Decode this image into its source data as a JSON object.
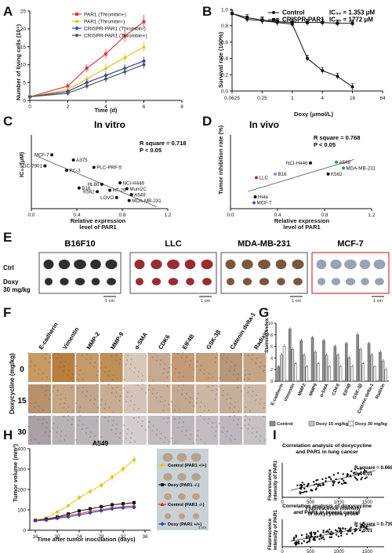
{
  "panels": {
    "A": {
      "label": "A",
      "chart_data": {
        "type": "line",
        "xlabel": "Time (d)",
        "ylabel": "Number of living cells (10⁴)",
        "xlim": [
          0,
          8
        ],
        "ylim": [
          0,
          25
        ],
        "x": [
          0,
          2,
          3,
          4,
          5,
          6
        ],
        "xticks": [
          "0",
          "2",
          "4",
          "6",
          "8"
        ],
        "yticks": [
          "0",
          "5",
          "10",
          "15",
          "20",
          "25"
        ],
        "legend_position": "top-left",
        "series": [
          {
            "name": "PAR1 (Thrombin+)",
            "color": "#e23a3a",
            "values": [
              1,
              4,
              9,
              13,
              18,
              22
            ]
          },
          {
            "name": "PAR1 (Thrombin-)",
            "color": "#e6c21a",
            "values": [
              1,
              3,
              6,
              9,
              12,
              15
            ]
          },
          {
            "name": "CRISPR-PAR1 (Thrombin-)",
            "color": "#2d3fb0",
            "values": [
              1,
              2.5,
              5,
              7,
              9,
              11
            ]
          },
          {
            "name": "CRISPR-PAR1 (Thrombin+)",
            "color": "#555555",
            "values": [
              1,
              2,
              4,
              6,
              8,
              10
            ]
          }
        ]
      }
    },
    "B": {
      "label": "B",
      "chart_data": {
        "type": "line",
        "xlabel": "Doxy  (μmol/L)",
        "ylabel": "Survival rate (100%)",
        "xscale": "log",
        "x": [
          0.0625,
          0.125,
          0.25,
          0.5,
          1,
          2,
          4,
          8,
          16
        ],
        "xticks": [
          "0.0625",
          "0.25",
          "1",
          "4",
          "16",
          "64"
        ],
        "yticks": [
          "0.0",
          "0.2",
          "0.4",
          "0.6",
          "0.8",
          "1.0"
        ],
        "ylim": [
          0,
          1.0
        ],
        "legend_position": "top",
        "series": [
          {
            "name": "Control",
            "ic50": "IC₅₀ = 1.353 μM",
            "color": "#111111",
            "values": [
              0.95,
              0.88,
              0.86,
              0.84,
              0.82,
              0.4,
              0.25,
              0.18,
              0.05
            ]
          },
          {
            "name": "CRISPR-PAR1",
            "ic50": "IC₅₀ = 1772 μM",
            "color": "#111111",
            "values": [
              0.95,
              0.9,
              0.87,
              0.85,
              0.84,
              0.84,
              0.84,
              0.83,
              0.83
            ]
          }
        ]
      }
    },
    "C": {
      "label": "C",
      "title": "In vitro",
      "rsq": "R square = 0.718",
      "pval": "P < 0.05",
      "chart_data": {
        "type": "scatter",
        "xlabel": "Relative expression\nlevel of PAR1",
        "ylabel": "IC₅₀ (μM)",
        "xlim": [
          0,
          1.2
        ],
        "xticks": [
          "0.0",
          "0.4",
          "0.8",
          "1.2"
        ],
        "ylim": [
          0,
          1
        ],
        "points": [
          {
            "name": "MCF-7",
            "x": 0.18,
            "y": 0.73
          },
          {
            "name": "A375",
            "x": 0.37,
            "y": 0.66
          },
          {
            "name": "SGC-7901",
            "x": 0.12,
            "y": 0.58
          },
          {
            "name": "PLC-PRF-5",
            "x": 0.55,
            "y": 0.56
          },
          {
            "name": "PC-3",
            "x": 0.31,
            "y": 0.52
          },
          {
            "name": "HL60",
            "x": 0.62,
            "y": 0.33
          },
          {
            "name": "NCI-H446",
            "x": 0.78,
            "y": 0.35
          },
          {
            "name": "B16",
            "x": 0.42,
            "y": 0.28
          },
          {
            "name": "Mum2C",
            "x": 0.84,
            "y": 0.27
          },
          {
            "name": "HT-29",
            "x": 0.69,
            "y": 0.25
          },
          {
            "name": "K562",
            "x": 0.58,
            "y": 0.23
          },
          {
            "name": "A549",
            "x": 0.88,
            "y": 0.19
          },
          {
            "name": "LOVO",
            "x": 0.75,
            "y": 0.15
          },
          {
            "name": "MDA-MB-231",
            "x": 0.86,
            "y": 0.11
          }
        ]
      }
    },
    "D": {
      "label": "D",
      "title": "In vivo",
      "rsq": "R square = 0.768",
      "pval": "P < 0.05",
      "chart_data": {
        "type": "scatter",
        "xlabel": "Relative expression\nlevel of PAR1",
        "ylabel": "Tumor inhibition rate (%)",
        "xlim": [
          0,
          1.2
        ],
        "xticks": [
          "0.0",
          "0.4",
          "0.8",
          "1.2"
        ],
        "ylim": [
          0,
          1
        ],
        "points": [
          {
            "name": "NCI-H446",
            "x": 0.68,
            "y": 0.62,
            "color": "#111111"
          },
          {
            "name": "A549",
            "x": 0.9,
            "y": 0.63,
            "color": "#2b9a45"
          },
          {
            "name": "MDA-MB-231",
            "x": 0.96,
            "y": 0.55,
            "color": "#2b9a45"
          },
          {
            "name": "K562",
            "x": 0.83,
            "y": 0.47,
            "color": "#111111"
          },
          {
            "name": "B16",
            "x": 0.38,
            "y": 0.47,
            "color": "#8a8adc"
          },
          {
            "name": "LLC",
            "x": 0.22,
            "y": 0.42,
            "color": "#c0282a"
          },
          {
            "name": "Hela",
            "x": 0.21,
            "y": 0.16,
            "color": "#111111"
          },
          {
            "name": "MCF-7",
            "x": 0.2,
            "y": 0.08,
            "color": "#6b3cc8"
          }
        ]
      }
    },
    "E": {
      "label": "E",
      "groups": [
        {
          "name": "B16F10",
          "color": "#1d1d1d",
          "scale": "1 cm"
        },
        {
          "name": "LLC",
          "color": "#8e1b1f",
          "scale": "1 cm"
        },
        {
          "name": "MDA-MB-231",
          "color": "#6e4a2f",
          "scale": "1 cm"
        },
        {
          "name": "MCF-7",
          "color": "#8f9bb0",
          "scale": "1 cm"
        }
      ],
      "row_ctrl": "Ctrl",
      "row_doxy": "Doxy",
      "row_dose": "30 mg/kg"
    },
    "F": {
      "label": "F",
      "markers": [
        "E-cadherin",
        "Vimentin",
        "MMP-2",
        "MMP-9",
        "α-SMA",
        "CDK6",
        "EIF4B",
        "GSK-3β",
        "Catenin delta-1",
        "Radixin"
      ],
      "side_label": "Doxycycline (mg/kg)",
      "doses": [
        "0",
        "15",
        "30"
      ]
    },
    "G": {
      "label": "G",
      "chart_data": {
        "type": "bar",
        "ylabel": "Staining index",
        "yticks": [
          "0",
          "2",
          "4",
          "6",
          "8",
          "10"
        ],
        "ylim": [
          0,
          10
        ],
        "categories": [
          "E-cadherin",
          "Vimentin",
          "MMP2",
          "MMP9",
          "α-SMA",
          "CDK6",
          "EIF4B",
          "GSK-3β",
          "Catenin delta-1",
          "Radixin"
        ],
        "legend_position": "bottom",
        "series": [
          {
            "name": "Control",
            "color": "#8c8c8c",
            "values": [
              2.5,
              9,
              7,
              7.5,
              7,
              6,
              6.5,
              8,
              6.5,
              5
            ]
          },
          {
            "name": "Doxy 15 mg/kg",
            "color": "#c4c4c4",
            "values": [
              4.5,
              5.5,
              4.5,
              5,
              4.5,
              4.5,
              4,
              5.5,
              4.5,
              3.5
            ]
          },
          {
            "name": "Doxy 30 mg/kg",
            "color": "#ebebeb",
            "values": [
              6,
              3,
              2.5,
              3,
              2.5,
              2.5,
              2.5,
              3,
              2.5,
              2
            ]
          }
        ]
      }
    },
    "H": {
      "label": "H",
      "chart_data": {
        "type": "line",
        "title": "A549",
        "xlabel": "Time after tumor inoculation (days)",
        "ylabel": "Tumor volume (mm³)",
        "xlim": [
          15,
          37
        ],
        "ylim": [
          0,
          400
        ],
        "x": [
          16,
          18,
          20,
          22,
          24,
          26,
          28,
          30,
          32,
          34
        ],
        "xticks": [
          "16",
          "20",
          "24",
          "28",
          "32",
          "36"
        ],
        "yticks": [
          "0",
          "100",
          "200",
          "300",
          "400"
        ],
        "series": [
          {
            "name": "Control (PAR1 +/+)",
            "color": "#e6c21a",
            "values": [
              50,
              60,
              90,
              120,
              160,
              190,
              220,
              260,
              300,
              345
            ]
          },
          {
            "name": "Doxy (PAR1 -/-)",
            "color": "#111111",
            "values": [
              48,
              55,
              65,
              80,
              95,
              105,
              115,
              125,
              130,
              135
            ]
          },
          {
            "name": "Control (PAR1 -/-)",
            "color": "#d62a2a",
            "values": [
              48,
              52,
              62,
              72,
              82,
              92,
              100,
              110,
              115,
              120
            ]
          },
          {
            "name": "Doxy (PAR1 +/+)",
            "color": "#2d3fb0",
            "values": [
              47,
              50,
              58,
              66,
              75,
              85,
              95,
              105,
              110,
              112
            ]
          }
        ],
        "scale": "1 cm"
      }
    },
    "I": {
      "label": "I",
      "plots": [
        {
          "title": "Correlation analysis of doxycycline\nand PAR1 in lung cancer",
          "rsq": "R square = 0.668",
          "pval": "P < 0.01",
          "chart_data": {
            "type": "scatter",
            "xlabel": "Fluorescence intensity\nof doxycycline probe",
            "ylabel": "Fluorescence\nintensity of PAR1",
            "xlim": [
              0,
              1800
            ],
            "xticks": [
              "0",
              "500",
              "1000",
              "1500"
            ]
          }
        },
        {
          "title": "Correlation analysis of doxycycline\nand PAR1 in breast cancer",
          "rsq": "R square = 0.739",
          "pval": "P < 0.01",
          "chart_data": {
            "type": "scatter",
            "xlabel": "Fluorescence intensity\nof doxycycline probe",
            "ylabel": "Fluorescence\nintensity of PAR1",
            "xlim": [
              0,
              1800
            ],
            "xticks": [
              "0",
              "500",
              "1000",
              "1500"
            ]
          }
        }
      ]
    }
  }
}
